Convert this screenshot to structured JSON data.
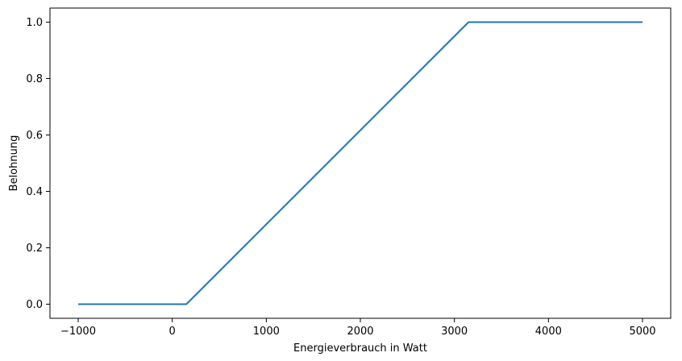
{
  "chart_data": {
    "type": "line",
    "title": "",
    "xlabel": "Energieverbrauch in Watt",
    "ylabel": "Belohnung",
    "xlim": [
      -1300,
      5300
    ],
    "ylim": [
      -0.05,
      1.05
    ],
    "xticks": [
      -1000,
      0,
      1000,
      2000,
      3000,
      4000,
      5000
    ],
    "xtick_labels": [
      "−1000",
      "0",
      "1000",
      "2000",
      "3000",
      "4000",
      "5000"
    ],
    "yticks": [
      0.0,
      0.2,
      0.4,
      0.6,
      0.8,
      1.0
    ],
    "ytick_labels": [
      "0.0",
      "0.2",
      "0.4",
      "0.6",
      "0.8",
      "1.0"
    ],
    "grid": false,
    "series": [
      {
        "color": "#1f77b4",
        "x": [
          -1000,
          150,
          3150,
          5000
        ],
        "y": [
          0.0,
          0.0,
          1.0,
          1.0
        ]
      }
    ]
  }
}
